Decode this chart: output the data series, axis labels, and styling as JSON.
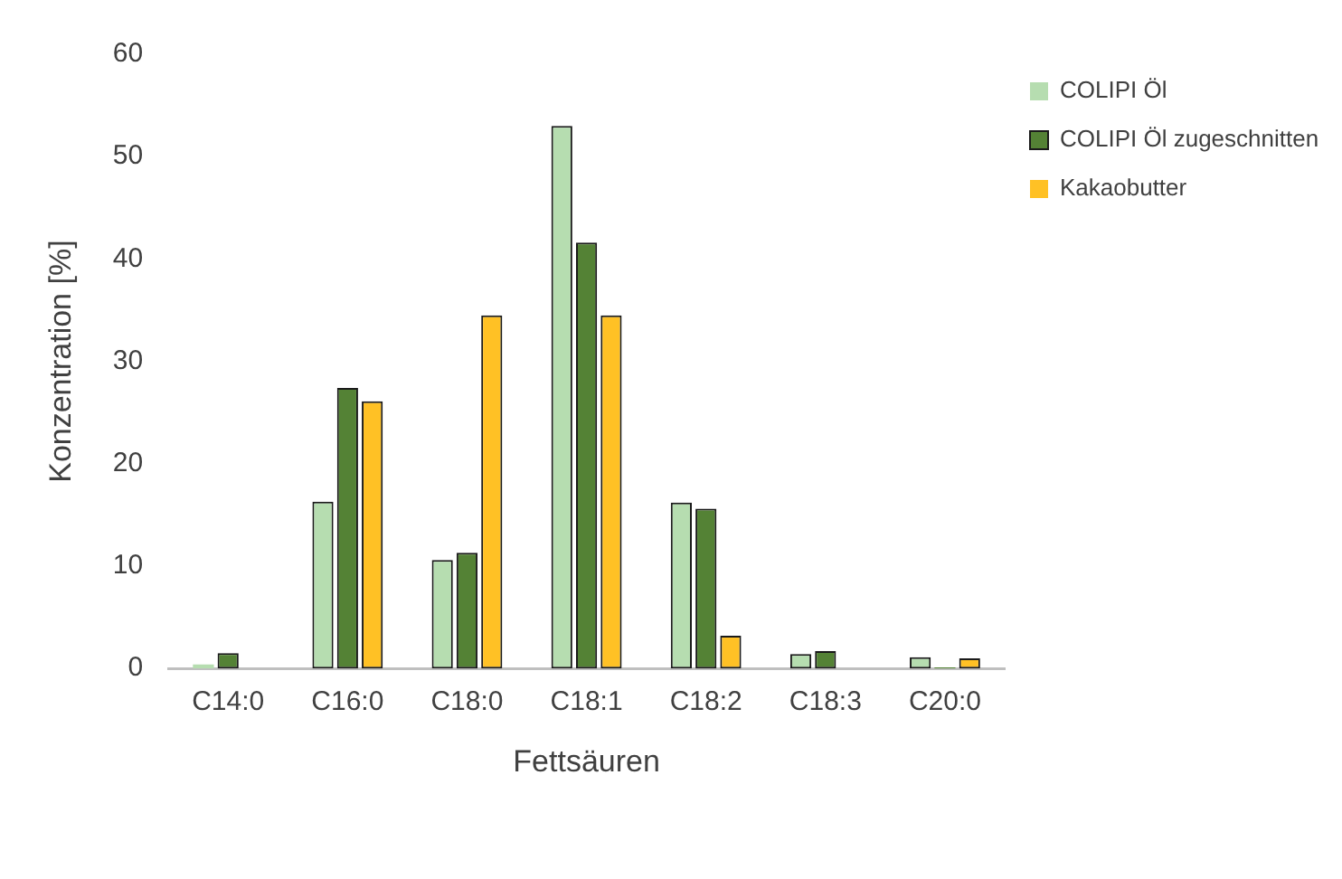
{
  "chart_data": {
    "type": "bar",
    "xlabel": "Fettsäuren",
    "ylabel": "Konzentration [%]",
    "categories": [
      "C14:0",
      "C16:0",
      "C18:0",
      "C18:1",
      "C18:2",
      "C18:3",
      "C20:0"
    ],
    "series": [
      {
        "name": "COLIPI Öl",
        "color": "#b6ddb0",
        "values": [
          0.4,
          16.3,
          10.6,
          53,
          16.2,
          1.4,
          1.1
        ]
      },
      {
        "name": "COLIPI Öl zugeschnitten",
        "color": "#548235",
        "values": [
          1.5,
          27.4,
          11.3,
          41.6,
          15.6,
          1.7,
          0.1
        ]
      },
      {
        "name": "Kakaobutter",
        "color": "#ffc125",
        "values": [
          0,
          26.1,
          34.5,
          34.5,
          3.2,
          0,
          1.0
        ]
      }
    ],
    "ylim": [
      0,
      60
    ],
    "yticks": [
      0,
      10,
      20,
      30,
      40,
      50,
      60
    ],
    "grid": false,
    "legend": "top right"
  }
}
